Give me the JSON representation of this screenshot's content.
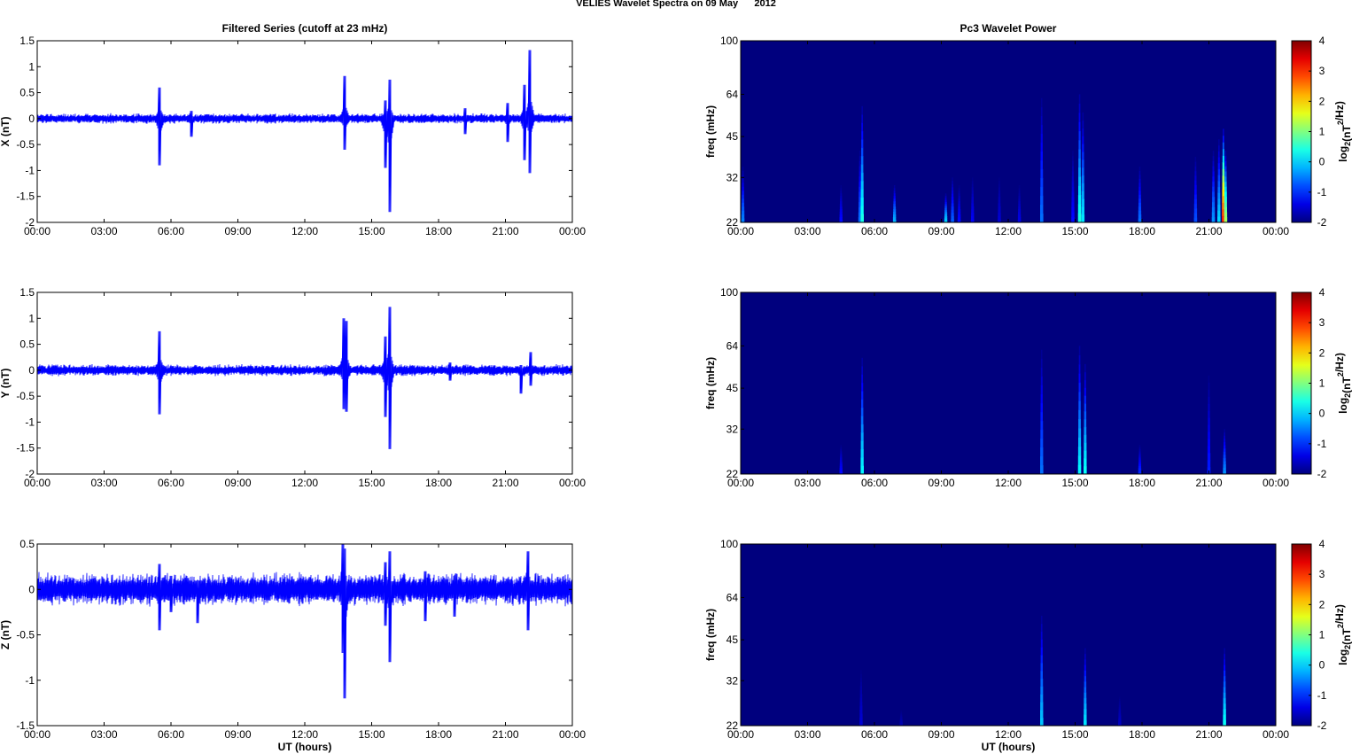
{
  "figure": {
    "title": "VELIES Wavelet Spectra on 09 May      2012"
  },
  "time_ticks": [
    "00:00",
    "03:00",
    "06:00",
    "09:00",
    "12:00",
    "15:00",
    "18:00",
    "21:00",
    "00:00"
  ],
  "xlabel": "UT (hours)",
  "colorbar": {
    "ticks": [
      "4",
      "3",
      "2",
      "1",
      "0",
      "-1",
      "-2"
    ],
    "label_main": "log",
    "label_sub": "2",
    "label_paren": "(nT",
    "label_sup": "2",
    "label_end": "/Hz)"
  },
  "chart_data": [
    {
      "type": "line",
      "panel": "X",
      "title": "Filtered Series (cutoff at 23 mHz)",
      "ylabel": "X (nT)",
      "ylim": [
        -2,
        1.5
      ],
      "yticks": [
        "1.5",
        "1",
        "0.5",
        "0",
        "-0.5",
        "-1",
        "-1.5",
        "-2"
      ],
      "xlim_hours": [
        0,
        24
      ],
      "line_color": "#0000ff",
      "noise_amplitude": 0.07,
      "spikes": [
        {
          "t": 5.5,
          "max": 0.6,
          "min": -0.9
        },
        {
          "t": 6.9,
          "max": 0.15,
          "min": -0.35
        },
        {
          "t": 13.8,
          "max": 0.82,
          "min": -0.6
        },
        {
          "t": 15.6,
          "max": 0.35,
          "min": -0.95
        },
        {
          "t": 15.8,
          "max": 0.75,
          "min": -1.8
        },
        {
          "t": 19.2,
          "max": 0.2,
          "min": -0.3
        },
        {
          "t": 21.1,
          "max": 0.3,
          "min": -0.45
        },
        {
          "t": 21.85,
          "max": 0.65,
          "min": -0.8
        },
        {
          "t": 22.1,
          "max": 1.32,
          "min": -1.05
        }
      ]
    },
    {
      "type": "line",
      "panel": "Y",
      "ylabel": "Y (nT)",
      "ylim": [
        -2,
        1.5
      ],
      "yticks": [
        "1.5",
        "1",
        "0.5",
        "0",
        "-0.5",
        "-1",
        "-1.5",
        "-2"
      ],
      "xlim_hours": [
        0,
        24
      ],
      "line_color": "#0000ff",
      "noise_amplitude": 0.08,
      "spikes": [
        {
          "t": 5.5,
          "max": 0.75,
          "min": -0.85
        },
        {
          "t": 13.75,
          "max": 1.0,
          "min": -0.75
        },
        {
          "t": 13.85,
          "max": 0.95,
          "min": -0.8
        },
        {
          "t": 15.6,
          "max": 0.65,
          "min": -0.9
        },
        {
          "t": 15.8,
          "max": 1.22,
          "min": -1.52
        },
        {
          "t": 18.5,
          "max": 0.15,
          "min": -0.2
        },
        {
          "t": 21.7,
          "max": 0.1,
          "min": -0.45
        },
        {
          "t": 22.15,
          "max": 0.35,
          "min": -0.3
        }
      ]
    },
    {
      "type": "line",
      "panel": "Z",
      "ylabel": "Z (nT)",
      "ylim": [
        -1.5,
        0.5
      ],
      "yticks": [
        "0.5",
        "0",
        "-0.5",
        "-1",
        "-1.5"
      ],
      "xlim_hours": [
        0,
        24
      ],
      "line_color": "#0000ff",
      "noise_amplitude": 0.13,
      "spikes": [
        {
          "t": 5.5,
          "max": 0.28,
          "min": -0.45
        },
        {
          "t": 6.0,
          "max": 0.15,
          "min": -0.25
        },
        {
          "t": 7.2,
          "max": 0.1,
          "min": -0.37
        },
        {
          "t": 13.7,
          "max": 0.5,
          "min": -0.7
        },
        {
          "t": 13.8,
          "max": 0.45,
          "min": -1.2
        },
        {
          "t": 15.6,
          "max": 0.3,
          "min": -0.4
        },
        {
          "t": 15.8,
          "max": 0.42,
          "min": -0.8
        },
        {
          "t": 17.4,
          "max": 0.2,
          "min": -0.35
        },
        {
          "t": 18.7,
          "max": 0.15,
          "min": -0.3
        },
        {
          "t": 22.0,
          "max": 0.42,
          "min": -0.45
        }
      ]
    },
    {
      "type": "heatmap",
      "panel": "X",
      "title": "Pc3 Wavelet Power",
      "ylabel": "freq (mHz)",
      "yticks": [
        "100",
        "64",
        "45",
        "32",
        "22"
      ],
      "freq_range_mHz": [
        22,
        100
      ],
      "xlim_hours": [
        0,
        24
      ],
      "color_range": [
        -2,
        4
      ],
      "background": -2,
      "features": [
        {
          "t": 0.1,
          "fmax": 35,
          "peak": -0.5
        },
        {
          "t": 4.5,
          "fmax": 30,
          "peak": -1.2
        },
        {
          "t": 5.35,
          "fmax": 40,
          "peak": -0.6
        },
        {
          "t": 5.45,
          "fmax": 58,
          "peak": 0.4
        },
        {
          "t": 6.9,
          "fmax": 30,
          "peak": -0.2
        },
        {
          "t": 9.2,
          "fmax": 28,
          "peak": 0.0
        },
        {
          "t": 9.5,
          "fmax": 32,
          "peak": -0.7
        },
        {
          "t": 9.8,
          "fmax": 30,
          "peak": -1.2
        },
        {
          "t": 10.4,
          "fmax": 32,
          "peak": -1.3
        },
        {
          "t": 11.6,
          "fmax": 32,
          "peak": -1.5
        },
        {
          "t": 12.5,
          "fmax": 30,
          "peak": -1.4
        },
        {
          "t": 13.5,
          "fmax": 62,
          "peak": -0.6
        },
        {
          "t": 14.9,
          "fmax": 40,
          "peak": -1.2
        },
        {
          "t": 15.2,
          "fmax": 64,
          "peak": 0.4
        },
        {
          "t": 15.35,
          "fmax": 55,
          "peak": 0.1
        },
        {
          "t": 17.9,
          "fmax": 35,
          "peak": -0.6
        },
        {
          "t": 20.4,
          "fmax": 38,
          "peak": -0.8
        },
        {
          "t": 21.2,
          "fmax": 40,
          "peak": -0.4
        },
        {
          "t": 21.45,
          "fmax": 44,
          "peak": 0.0
        },
        {
          "t": 21.65,
          "fmax": 48,
          "peak": 3.0
        },
        {
          "t": 21.75,
          "fmax": 40,
          "peak": 1.2
        }
      ]
    },
    {
      "type": "heatmap",
      "panel": "Y",
      "ylabel": "freq (mHz)",
      "yticks": [
        "100",
        "64",
        "45",
        "32",
        "22"
      ],
      "freq_range_mHz": [
        22,
        100
      ],
      "xlim_hours": [
        0,
        24
      ],
      "color_range": [
        -2,
        4
      ],
      "background": -2,
      "features": [
        {
          "t": 4.5,
          "fmax": 28,
          "peak": -1.2
        },
        {
          "t": 5.45,
          "fmax": 58,
          "peak": 0.2
        },
        {
          "t": 13.5,
          "fmax": 62,
          "peak": -0.6
        },
        {
          "t": 15.2,
          "fmax": 64,
          "peak": 0.2
        },
        {
          "t": 15.45,
          "fmax": 55,
          "peak": 0.3
        },
        {
          "t": 17.9,
          "fmax": 28,
          "peak": -1.0
        },
        {
          "t": 21.0,
          "fmax": 50,
          "peak": -1.1
        },
        {
          "t": 21.7,
          "fmax": 32,
          "peak": -0.4
        }
      ]
    },
    {
      "type": "heatmap",
      "panel": "Z",
      "ylabel": "freq (mHz)",
      "yticks": [
        "100",
        "64",
        "45",
        "32",
        "22"
      ],
      "freq_range_mHz": [
        22,
        100
      ],
      "xlim_hours": [
        0,
        24
      ],
      "color_range": [
        -2,
        4
      ],
      "background": -2,
      "features": [
        {
          "t": 5.4,
          "fmax": 35,
          "peak": -1.5
        },
        {
          "t": 7.2,
          "fmax": 25,
          "peak": -1.7
        },
        {
          "t": 13.5,
          "fmax": 55,
          "peak": -0.1
        },
        {
          "t": 15.45,
          "fmax": 42,
          "peak": 0.1
        },
        {
          "t": 17.0,
          "fmax": 28,
          "peak": -1.6
        },
        {
          "t": 21.7,
          "fmax": 42,
          "peak": 0.3
        }
      ]
    }
  ]
}
